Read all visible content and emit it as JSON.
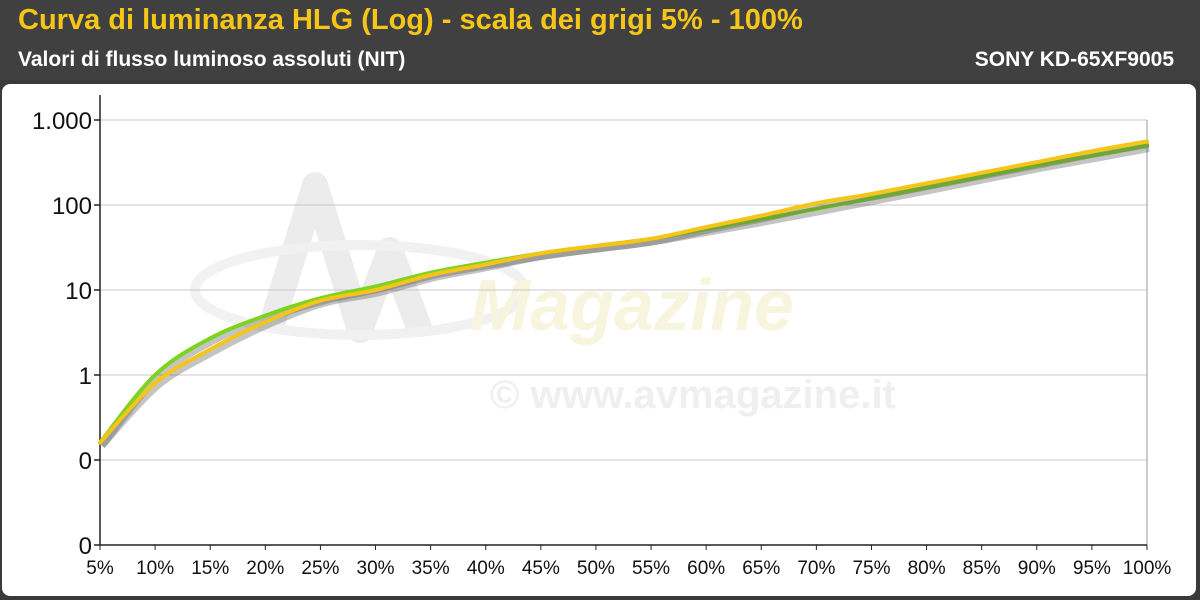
{
  "header": {
    "title": "Curva di luminanza HLG (Log) - scala dei grigi 5% - 100%",
    "subtitle": "Valori di flusso luminoso assoluti (NIT)",
    "model": "SONY KD-65XF9005"
  },
  "watermark": {
    "logo_text": "AV Magazine",
    "url_text": "© www.avmagazine.it"
  },
  "colors": {
    "background": "#3a3a3a",
    "title": "#f5c518",
    "reference_line": "#7ed321",
    "measured_line": "#f5c518"
  },
  "chart_data": {
    "type": "line",
    "title": "Curva di luminanza HLG (Log) - scala dei grigi 5% - 100%",
    "subtitle": "Valori di flusso luminoso assoluti (NIT)",
    "y_scale": "log",
    "ylim": [
      0.01,
      1000
    ],
    "grid": true,
    "legend": "none",
    "x_tick_labels": [
      "5%",
      "10%",
      "15%",
      "20%",
      "25%",
      "30%",
      "35%",
      "40%",
      "45%",
      "50%",
      "55%",
      "60%",
      "65%",
      "70%",
      "75%",
      "80%",
      "85%",
      "90%",
      "95%",
      "100%"
    ],
    "y_ticks": [
      {
        "value": 0.01,
        "label": "0"
      },
      {
        "value": 0.1,
        "label": "0"
      },
      {
        "value": 1,
        "label": "1"
      },
      {
        "value": 10,
        "label": "10"
      },
      {
        "value": 100,
        "label": "100"
      },
      {
        "value": 1000,
        "label": "1.000"
      }
    ],
    "x": [
      5,
      10,
      15,
      20,
      25,
      30,
      35,
      40,
      45,
      50,
      55,
      60,
      65,
      70,
      75,
      80,
      85,
      90,
      95,
      100
    ],
    "series": [
      {
        "color": "#7ed321",
        "values": [
          0.16,
          1.0,
          2.7,
          5.0,
          8.0,
          11.0,
          16.0,
          21.0,
          27.0,
          33.0,
          40.0,
          52.0,
          68.0,
          90.0,
          120.0,
          160.0,
          215.0,
          290.0,
          380.0,
          500.0
        ]
      },
      {
        "color": "#f5c518",
        "values": [
          0.16,
          0.8,
          2.0,
          4.2,
          7.5,
          10.0,
          15.0,
          20.0,
          27.0,
          33.0,
          40.0,
          55.0,
          75.0,
          105.0,
          135.0,
          180.0,
          240.0,
          320.0,
          430.0,
          560.0
        ]
      }
    ]
  }
}
